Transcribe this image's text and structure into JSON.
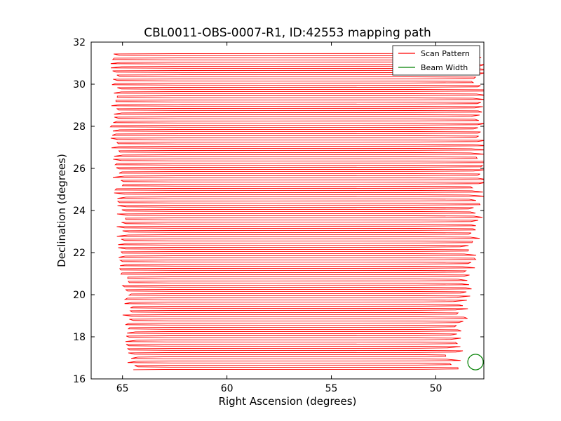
{
  "chart_data": {
    "type": "line",
    "title": "CBL0011-OBS-0007-R1, ID:42553 mapping path",
    "xlabel": "Right Ascension (degrees)",
    "ylabel": "Declination (degrees)",
    "xlim": [
      66.5,
      47.7
    ],
    "ylim": [
      16,
      32
    ],
    "x_reversed": true,
    "xticks": [
      65,
      60,
      55,
      50
    ],
    "yticks": [
      16,
      18,
      20,
      22,
      24,
      26,
      28,
      30,
      32
    ],
    "grid": false,
    "legend_position": "upper-right",
    "series": [
      {
        "name": "Scan Pattern",
        "color": "#ff0000",
        "scan": {
          "dec_start": 16.45,
          "dec_end": 31.45,
          "dec_step": 0.1,
          "ra_start_range": [
            64.5,
            65.3
          ],
          "ra_end_range": [
            49.2,
            47.9
          ],
          "pivot_left_ra": 62.3,
          "pivot_right_ra": 50.9
        }
      },
      {
        "name": "Beam Width",
        "color": "#008000",
        "circle": {
          "center_ra": 48.1,
          "center_dec": 16.8,
          "radius_deg": 0.37
        }
      }
    ]
  }
}
